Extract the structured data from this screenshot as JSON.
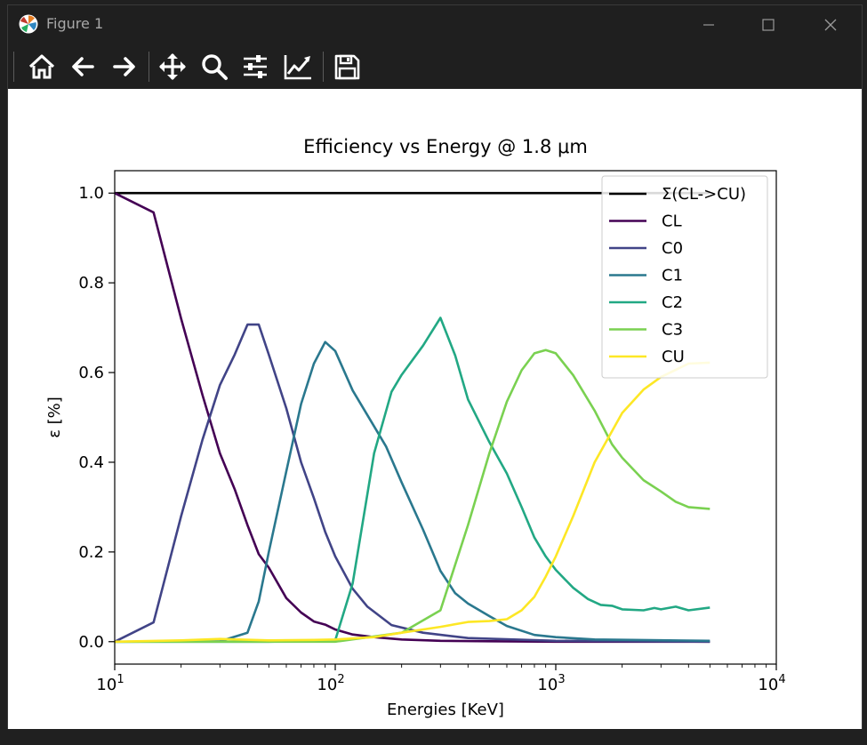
{
  "window": {
    "title": "Figure 1",
    "icons": [
      "matplotlib-logo-icon",
      "minimize-icon",
      "maximize-icon",
      "close-icon"
    ]
  },
  "toolbar": {
    "tools": [
      "home-icon",
      "back-arrow-icon",
      "forward-arrow-icon",
      "pan-move-icon",
      "zoom-magnifier-icon",
      "configure-subplots-icon",
      "edit-axis-icon",
      "save-floppy-icon"
    ]
  },
  "chart_data": {
    "type": "line",
    "title": "Efficiency vs Energy @ 1.8 μm",
    "xlabel": "Energies [KeV]",
    "ylabel": "ε [%]",
    "xscale": "log",
    "xlim": [
      10,
      10000
    ],
    "ylim": [
      -0.05,
      1.05
    ],
    "xticks": [
      {
        "value": 10,
        "base": "10",
        "exp": "1"
      },
      {
        "value": 100,
        "base": "10",
        "exp": "2"
      },
      {
        "value": 1000,
        "base": "10",
        "exp": "3"
      },
      {
        "value": 10000,
        "base": "10",
        "exp": "4"
      }
    ],
    "yticks": [
      {
        "value": 0.0,
        "label": "0.0"
      },
      {
        "value": 0.2,
        "label": "0.2"
      },
      {
        "value": 0.4,
        "label": "0.4"
      },
      {
        "value": 0.6,
        "label": "0.6"
      },
      {
        "value": 0.8,
        "label": "0.8"
      },
      {
        "value": 1.0,
        "label": "1.0"
      }
    ],
    "legend_position": "upper right",
    "grid": false,
    "series": [
      {
        "name": "Σ(CL->CU)",
        "color": "#000000",
        "x": [
          10,
          5000
        ],
        "y": [
          1.0,
          1.0
        ]
      },
      {
        "name": "CL",
        "color": "#440154",
        "x": [
          10,
          15,
          20,
          25,
          30,
          35,
          40,
          45,
          50,
          60,
          70,
          80,
          90,
          100,
          120,
          150,
          200,
          300,
          500,
          1000,
          2000,
          5000
        ],
        "y": [
          1.0,
          0.957,
          0.72,
          0.55,
          0.42,
          0.34,
          0.26,
          0.195,
          0.165,
          0.097,
          0.065,
          0.045,
          0.038,
          0.027,
          0.016,
          0.01,
          0.005,
          0.002,
          0.001,
          0.0,
          0.0,
          0.0
        ]
      },
      {
        "name": "C0",
        "color": "#414487",
        "x": [
          10,
          15,
          20,
          25,
          30,
          35,
          40,
          45,
          50,
          60,
          70,
          80,
          90,
          100,
          120,
          140,
          180,
          250,
          400,
          1000,
          5000
        ],
        "y": [
          0.0,
          0.043,
          0.28,
          0.45,
          0.572,
          0.64,
          0.707,
          0.707,
          0.64,
          0.52,
          0.4,
          0.32,
          0.245,
          0.19,
          0.118,
          0.078,
          0.037,
          0.02,
          0.008,
          0.002,
          0.0
        ]
      },
      {
        "name": "C1",
        "color": "#2a788e",
        "x": [
          10,
          30,
          40,
          45,
          50,
          60,
          70,
          80,
          90,
          100,
          120,
          150,
          170,
          200,
          250,
          300,
          350,
          400,
          500,
          600,
          800,
          1000,
          1500,
          5000
        ],
        "y": [
          0.0,
          0.001,
          0.02,
          0.09,
          0.2,
          0.38,
          0.53,
          0.62,
          0.668,
          0.648,
          0.56,
          0.48,
          0.435,
          0.355,
          0.25,
          0.158,
          0.108,
          0.085,
          0.057,
          0.035,
          0.015,
          0.01,
          0.005,
          0.002
        ]
      },
      {
        "name": "C2",
        "color": "#22a884",
        "x": [
          10,
          50,
          100,
          120,
          150,
          180,
          200,
          250,
          300,
          350,
          400,
          500,
          600,
          700,
          800,
          900,
          1000,
          1200,
          1400,
          1600,
          1800,
          2000,
          2500,
          2800,
          3000,
          3500,
          4000,
          5000
        ],
        "y": [
          0.0,
          0.0,
          0.003,
          0.13,
          0.42,
          0.557,
          0.595,
          0.66,
          0.722,
          0.638,
          0.54,
          0.445,
          0.375,
          0.3,
          0.232,
          0.19,
          0.16,
          0.12,
          0.095,
          0.082,
          0.08,
          0.072,
          0.07,
          0.075,
          0.072,
          0.078,
          0.07,
          0.076
        ]
      },
      {
        "name": "C3",
        "color": "#7ad151",
        "x": [
          10,
          100,
          200,
          300,
          400,
          500,
          600,
          700,
          800,
          900,
          1000,
          1200,
          1500,
          1800,
          2000,
          2500,
          3000,
          3500,
          4000,
          5000
        ],
        "y": [
          0.0,
          0.0,
          0.02,
          0.07,
          0.26,
          0.42,
          0.535,
          0.605,
          0.643,
          0.65,
          0.643,
          0.594,
          0.515,
          0.44,
          0.41,
          0.36,
          0.335,
          0.312,
          0.3,
          0.296
        ]
      },
      {
        "name": "CU",
        "color": "#fde725",
        "x": [
          10,
          20,
          30,
          50,
          80,
          100,
          150,
          200,
          300,
          400,
          500,
          600,
          700,
          800,
          900,
          1000,
          1200,
          1500,
          2000,
          2500,
          3000,
          4000,
          5000
        ],
        "y": [
          0.0,
          0.003,
          0.006,
          0.003,
          0.004,
          0.005,
          0.01,
          0.02,
          0.033,
          0.044,
          0.046,
          0.05,
          0.07,
          0.1,
          0.145,
          0.19,
          0.28,
          0.4,
          0.51,
          0.562,
          0.59,
          0.62,
          0.622
        ]
      }
    ]
  }
}
